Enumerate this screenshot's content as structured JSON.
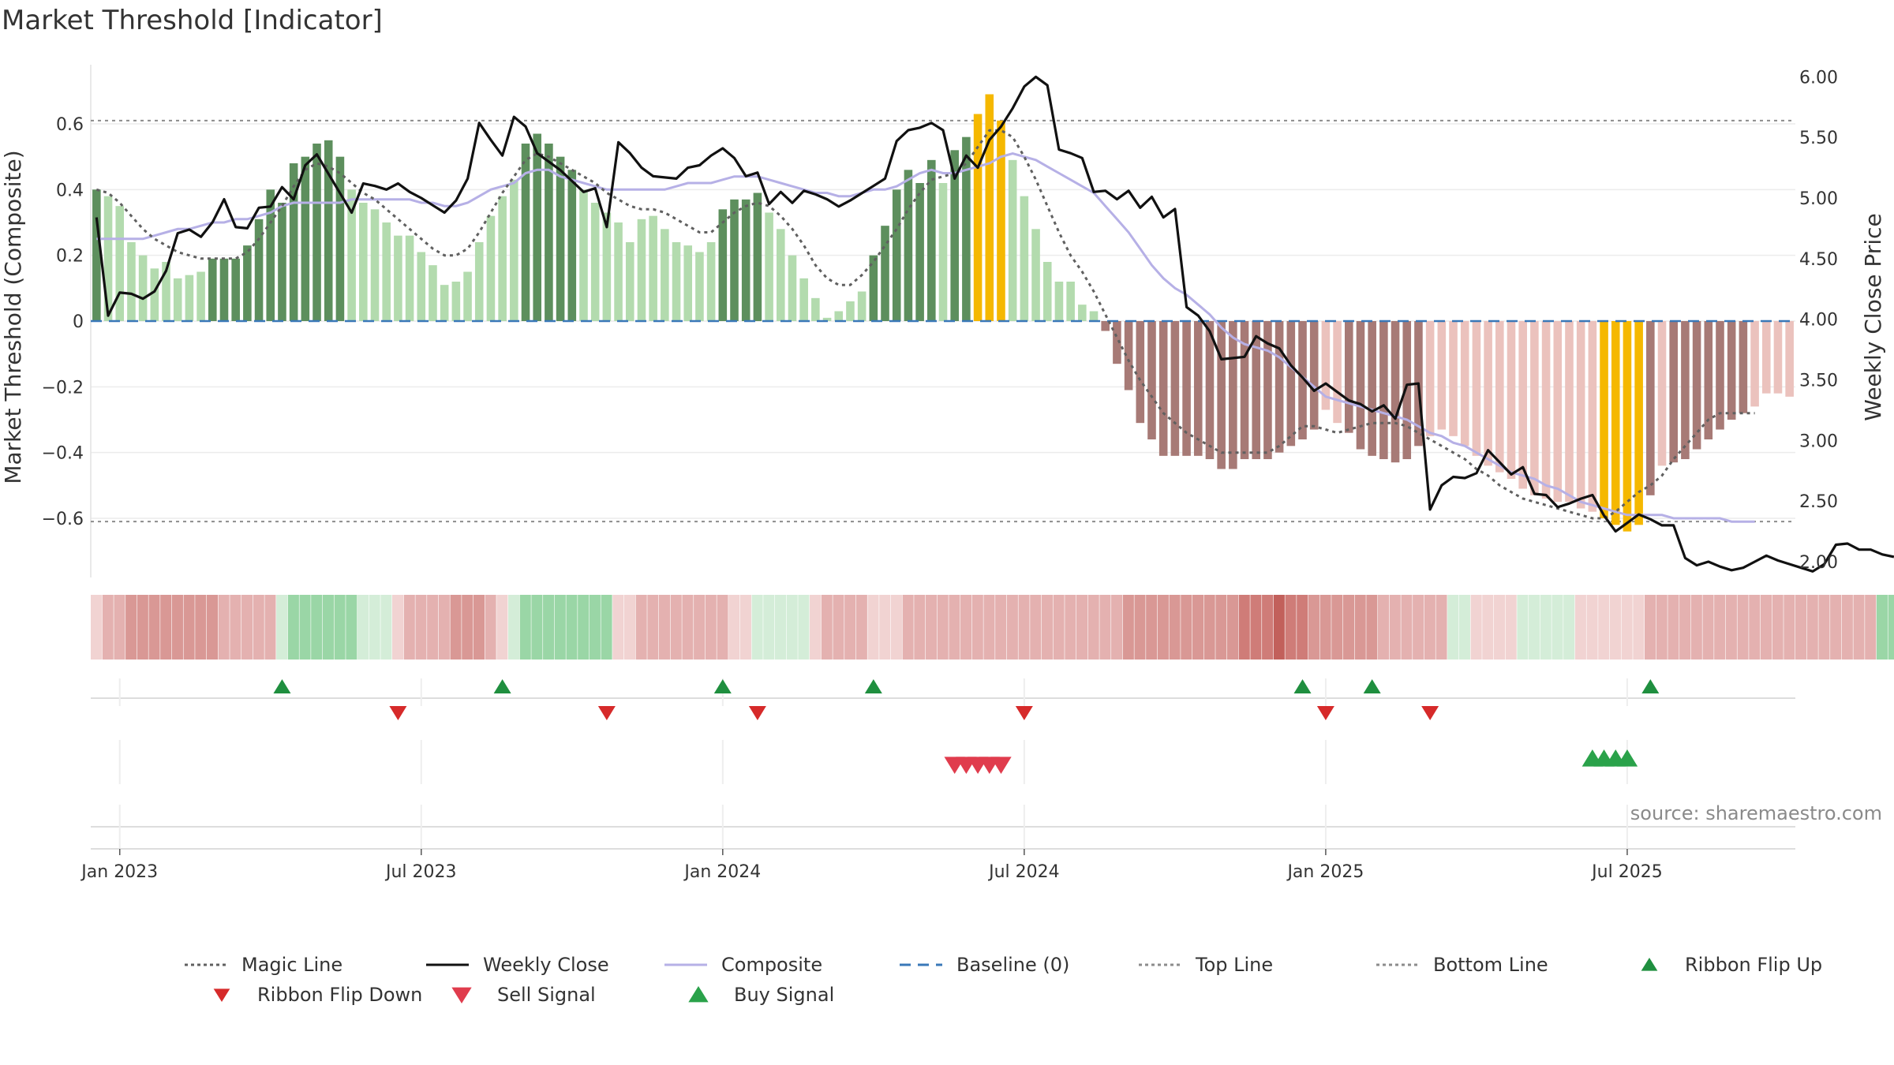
{
  "chart_data": {
    "type": "bar",
    "title": "Market Threshold [Indicator]",
    "ylabel": "Market Threshold (Composite)",
    "y2label": "Weekly Close Price",
    "ylim": [
      -0.78,
      0.78
    ],
    "y2lim": [
      1.87,
      6.1
    ],
    "yticks": [
      {
        "v": 0.6,
        "label": "0.6"
      },
      {
        "v": 0.4,
        "label": "0.4"
      },
      {
        "v": 0.2,
        "label": "0.2"
      },
      {
        "v": 0,
        "label": "0"
      },
      {
        "v": -0.2,
        "label": "−0.2"
      },
      {
        "v": -0.4,
        "label": "−0.4"
      },
      {
        "v": -0.6,
        "label": "−0.6"
      }
    ],
    "y2ticks": [
      {
        "v": 6.0,
        "label": "6.00"
      },
      {
        "v": 5.5,
        "label": "5.50"
      },
      {
        "v": 5.0,
        "label": "5.00"
      },
      {
        "v": 4.5,
        "label": "4.50"
      },
      {
        "v": 4.0,
        "label": "4.00"
      },
      {
        "v": 3.5,
        "label": "3.50"
      },
      {
        "v": 3.0,
        "label": "3.00"
      },
      {
        "v": 2.5,
        "label": "2.50"
      },
      {
        "v": 2.0,
        "label": "2.00"
      }
    ],
    "xticks": [
      {
        "week": 2,
        "label": "Jan 2023"
      },
      {
        "week": 28,
        "label": "Jul 2023"
      },
      {
        "week": 54,
        "label": "Jan 2024"
      },
      {
        "week": 80,
        "label": "Jul 2024"
      },
      {
        "week": 106,
        "label": "Jan 2025"
      },
      {
        "week": 132,
        "label": "Jul 2025"
      }
    ],
    "grid": true,
    "legend_position": "bottom",
    "top_line": 0.61,
    "bottom_line": -0.61,
    "baseline": 0,
    "composite_bars": [
      0.4,
      0.38,
      0.35,
      0.24,
      0.2,
      0.16,
      0.18,
      0.13,
      0.14,
      0.15,
      0.19,
      0.19,
      0.19,
      0.23,
      0.31,
      0.4,
      0.36,
      0.48,
      0.5,
      0.54,
      0.55,
      0.5,
      0.4,
      0.36,
      0.34,
      0.3,
      0.26,
      0.26,
      0.21,
      0.17,
      0.11,
      0.12,
      0.15,
      0.24,
      0.32,
      0.38,
      0.43,
      0.54,
      0.57,
      0.54,
      0.5,
      0.46,
      0.4,
      0.36,
      0.33,
      0.3,
      0.24,
      0.31,
      0.32,
      0.28,
      0.24,
      0.23,
      0.21,
      0.24,
      0.34,
      0.37,
      0.37,
      0.39,
      0.33,
      0.28,
      0.2,
      0.13,
      0.07,
      0.01,
      0.03,
      0.06,
      0.09,
      0.2,
      0.29,
      0.4,
      0.46,
      0.42,
      0.49,
      0.42,
      0.52,
      0.56,
      0.63,
      0.69,
      0.61,
      0.49,
      0.38,
      0.28,
      0.18,
      0.12,
      0.12,
      0.05,
      0.03,
      -0.03,
      -0.13,
      -0.21,
      -0.31,
      -0.36,
      -0.41,
      -0.41,
      -0.41,
      -0.41,
      -0.42,
      -0.45,
      -0.45,
      -0.42,
      -0.42,
      -0.42,
      -0.4,
      -0.38,
      -0.36,
      -0.33,
      -0.27,
      -0.31,
      -0.34,
      -0.39,
      -0.41,
      -0.42,
      -0.43,
      -0.42,
      -0.38,
      -0.35,
      -0.33,
      -0.35,
      -0.38,
      -0.41,
      -0.44,
      -0.46,
      -0.48,
      -0.51,
      -0.53,
      -0.54,
      -0.55,
      -0.55,
      -0.57,
      -0.58,
      -0.6,
      -0.62,
      -0.64,
      -0.62,
      -0.53,
      -0.44,
      -0.43,
      -0.42,
      -0.39,
      -0.36,
      -0.33,
      -0.3,
      -0.28,
      -0.26,
      -0.22,
      -0.22,
      -0.23
    ],
    "composite_line": [
      0.25,
      0.25,
      0.25,
      0.25,
      0.25,
      0.26,
      0.27,
      0.28,
      0.28,
      0.29,
      0.3,
      0.3,
      0.31,
      0.31,
      0.32,
      0.33,
      0.35,
      0.36,
      0.36,
      0.36,
      0.36,
      0.36,
      0.37,
      0.37,
      0.37,
      0.37,
      0.37,
      0.37,
      0.36,
      0.36,
      0.35,
      0.35,
      0.36,
      0.38,
      0.4,
      0.41,
      0.42,
      0.45,
      0.46,
      0.46,
      0.44,
      0.43,
      0.42,
      0.41,
      0.4,
      0.4,
      0.4,
      0.4,
      0.4,
      0.4,
      0.41,
      0.42,
      0.42,
      0.42,
      0.43,
      0.44,
      0.44,
      0.44,
      0.43,
      0.42,
      0.41,
      0.4,
      0.39,
      0.39,
      0.38,
      0.38,
      0.39,
      0.4,
      0.4,
      0.41,
      0.43,
      0.45,
      0.46,
      0.45,
      0.45,
      0.46,
      0.47,
      0.48,
      0.5,
      0.51,
      0.5,
      0.49,
      0.47,
      0.45,
      0.43,
      0.41,
      0.39,
      0.35,
      0.31,
      0.27,
      0.22,
      0.17,
      0.13,
      0.1,
      0.08,
      0.05,
      0.02,
      -0.02,
      -0.05,
      -0.07,
      -0.08,
      -0.09,
      -0.11,
      -0.14,
      -0.17,
      -0.2,
      -0.23,
      -0.24,
      -0.25,
      -0.26,
      -0.27,
      -0.28,
      -0.29,
      -0.3,
      -0.32,
      -0.34,
      -0.35,
      -0.37,
      -0.38,
      -0.4,
      -0.42,
      -0.44,
      -0.46,
      -0.47,
      -0.48,
      -0.5,
      -0.51,
      -0.53,
      -0.55,
      -0.56,
      -0.57,
      -0.58,
      -0.59,
      -0.59,
      -0.59,
      -0.59,
      -0.6,
      -0.6,
      -0.6,
      -0.6,
      -0.6,
      -0.61,
      -0.61,
      -0.61
    ],
    "magic_line": [
      0.4,
      0.39,
      0.36,
      0.32,
      0.28,
      0.25,
      0.23,
      0.21,
      0.2,
      0.19,
      0.19,
      0.19,
      0.19,
      0.21,
      0.25,
      0.3,
      0.35,
      0.41,
      0.46,
      0.48,
      0.47,
      0.45,
      0.42,
      0.39,
      0.37,
      0.34,
      0.31,
      0.28,
      0.25,
      0.22,
      0.2,
      0.2,
      0.22,
      0.27,
      0.33,
      0.39,
      0.44,
      0.49,
      0.51,
      0.5,
      0.48,
      0.46,
      0.44,
      0.42,
      0.39,
      0.37,
      0.35,
      0.34,
      0.34,
      0.33,
      0.31,
      0.29,
      0.27,
      0.27,
      0.3,
      0.33,
      0.35,
      0.36,
      0.35,
      0.32,
      0.28,
      0.23,
      0.17,
      0.13,
      0.11,
      0.11,
      0.14,
      0.18,
      0.23,
      0.28,
      0.34,
      0.39,
      0.43,
      0.44,
      0.45,
      0.48,
      0.53,
      0.58,
      0.58,
      0.56,
      0.5,
      0.43,
      0.35,
      0.27,
      0.2,
      0.15,
      0.09,
      0.02,
      -0.05,
      -0.12,
      -0.18,
      -0.23,
      -0.28,
      -0.31,
      -0.34,
      -0.36,
      -0.38,
      -0.4,
      -0.4,
      -0.4,
      -0.4,
      -0.4,
      -0.38,
      -0.35,
      -0.32,
      -0.32,
      -0.33,
      -0.34,
      -0.33,
      -0.32,
      -0.31,
      -0.31,
      -0.31,
      -0.32,
      -0.34,
      -0.36,
      -0.38,
      -0.4,
      -0.42,
      -0.45,
      -0.47,
      -0.5,
      -0.52,
      -0.54,
      -0.55,
      -0.56,
      -0.57,
      -0.58,
      -0.59,
      -0.6,
      -0.6,
      -0.58,
      -0.55,
      -0.52,
      -0.5,
      -0.47,
      -0.42,
      -0.38,
      -0.34,
      -0.3,
      -0.28,
      -0.28,
      -0.28,
      -0.28
    ],
    "weekly_close": [
      4.84,
      4.03,
      4.22,
      4.21,
      4.17,
      4.23,
      4.4,
      4.71,
      4.74,
      4.68,
      4.8,
      4.99,
      4.76,
      4.75,
      4.92,
      4.93,
      5.09,
      4.99,
      5.27,
      5.36,
      5.2,
      5.04,
      4.88,
      5.12,
      5.1,
      5.07,
      5.12,
      5.05,
      5.0,
      4.94,
      4.88,
      4.98,
      5.16,
      5.62,
      5.48,
      5.35,
      5.67,
      5.59,
      5.37,
      5.3,
      5.23,
      5.14,
      5.05,
      5.08,
      4.76,
      5.46,
      5.37,
      5.25,
      5.18,
      5.17,
      5.16,
      5.25,
      5.27,
      5.35,
      5.41,
      5.33,
      5.18,
      5.21,
      4.95,
      5.05,
      4.96,
      5.06,
      5.03,
      4.99,
      4.93,
      4.98,
      5.04,
      5.1,
      5.16,
      5.47,
      5.56,
      5.58,
      5.62,
      5.56,
      5.16,
      5.35,
      5.25,
      5.48,
      5.59,
      5.74,
      5.92,
      6.0,
      5.93,
      5.4,
      5.37,
      5.33,
      5.05,
      5.06,
      4.99,
      5.06,
      4.92,
      5.01,
      4.84,
      4.91,
      4.1,
      4.03,
      3.9,
      3.67,
      3.68,
      3.69,
      3.86,
      3.8,
      3.76,
      3.62,
      3.52,
      3.41,
      3.47,
      3.4,
      3.33,
      3.3,
      3.24,
      3.29,
      3.18,
      3.46,
      3.47,
      2.43,
      2.63,
      2.7,
      2.69,
      2.73,
      2.92,
      2.82,
      2.72,
      2.78,
      2.56,
      2.55,
      2.45,
      2.48,
      2.52,
      2.55,
      2.38,
      2.25,
      2.32,
      2.39,
      2.35,
      2.3,
      2.3,
      2.03,
      1.97,
      2.0,
      1.96,
      1.93,
      1.95,
      2.0,
      2.05,
      2.01,
      1.98,
      1.95,
      1.92,
      1.98,
      2.14,
      2.15,
      2.1,
      2.1,
      2.06,
      2.04
    ],
    "ribbon": [
      -1,
      -2,
      -2,
      -3,
      -3,
      -3,
      -3,
      -3,
      -3,
      -3,
      -3,
      -2,
      -2,
      -2,
      -2,
      -2,
      1,
      2,
      2,
      2,
      2,
      2,
      2,
      1,
      1,
      1,
      -1,
      -2,
      -2,
      -2,
      -2,
      -3,
      -3,
      -3,
      -2,
      -1,
      1,
      2,
      2,
      2,
      2,
      2,
      2,
      2,
      2,
      -1,
      -1,
      -2,
      -2,
      -2,
      -2,
      -2,
      -2,
      -2,
      -2,
      -1,
      -1,
      1,
      1,
      1,
      1,
      1,
      -1,
      -2,
      -2,
      -2,
      -2,
      -1,
      -1,
      -1,
      -2,
      -2,
      -2,
      -2,
      -2,
      -2,
      -2,
      -2,
      -2,
      -2,
      -2,
      -2,
      -2,
      -2,
      -2,
      -2,
      -2,
      -2,
      -2,
      -3,
      -3,
      -3,
      -3,
      -3,
      -3,
      -3,
      -3,
      -3,
      -3,
      -4,
      -4,
      -4,
      -5,
      -4,
      -4,
      -3,
      -3,
      -3,
      -3,
      -3,
      -3,
      -2,
      -2,
      -2,
      -2,
      -2,
      -2,
      1,
      1,
      -1,
      -1,
      -1,
      -1,
      1,
      1,
      1,
      1,
      1,
      -1,
      -1,
      -1,
      -1,
      -1,
      -1,
      -2,
      -2,
      -2,
      -2,
      -2,
      -2,
      -2,
      -2,
      -2,
      -2,
      -2,
      -2,
      -2,
      -2,
      -2,
      -2,
      -2,
      -2,
      -2,
      -2,
      2,
      2,
      2,
      2,
      2,
      2,
      2,
      2,
      2
    ],
    "ribbon_flip_up_weeks": [
      16,
      35,
      54,
      67,
      104,
      110,
      134
    ],
    "ribbon_flip_down_weeks": [
      26,
      44,
      57,
      80,
      106,
      115
    ],
    "sell_signal_weeks": [
      74,
      75,
      76,
      77,
      78
    ],
    "buy_signal_weeks": [
      129,
      130,
      131,
      132
    ],
    "legend": [
      {
        "label": "Magic Line",
        "style": "dotted",
        "color": "#606060"
      },
      {
        "label": "Weekly Close",
        "style": "solid",
        "color": "#111111"
      },
      {
        "label": "Composite",
        "style": "solid",
        "color": "#b6b0e6"
      },
      {
        "label": "Baseline (0)",
        "style": "dashed",
        "color": "#3a78b8"
      },
      {
        "label": "Top Line",
        "style": "dotted",
        "color": "#8c8c8c"
      },
      {
        "label": "Bottom Line",
        "style": "dotted",
        "color": "#8c8c8c"
      },
      {
        "label": "Ribbon Flip Up",
        "style": "triangle-up",
        "color": "#1f8f3f"
      },
      {
        "label": "Ribbon Flip Down",
        "style": "triangle-down",
        "color": "#d62a2a"
      },
      {
        "label": "Sell Signal",
        "style": "triangle-down-large",
        "color": "#e03c4d"
      },
      {
        "label": "Buy Signal",
        "style": "triangle-up-large",
        "color": "#2aa24a"
      }
    ]
  },
  "colors": {
    "bull_strong": "#5d8f5d",
    "bull_weak": "#b3dbae",
    "bear_strong": "#a77a76",
    "bear_weak": "#ebc2bd",
    "extreme": "#f5b800",
    "ribbon_green_1": "#d4edd8",
    "ribbon_green_2": "#9ad6a6",
    "ribbon_red_1": "#f1d3d2",
    "ribbon_red_2": "#e4b1b0",
    "ribbon_red_3": "#d99895",
    "ribbon_red_4": "#cf7c78",
    "ribbon_red_5": "#c2605b"
  },
  "title": "Market Threshold [Indicator]",
  "source": "source: sharemaestro.com"
}
